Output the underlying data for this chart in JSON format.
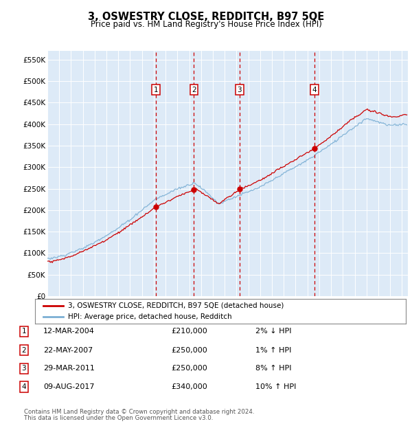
{
  "title": "3, OSWESTRY CLOSE, REDDITCH, B97 5QE",
  "subtitle": "Price paid vs. HM Land Registry's House Price Index (HPI)",
  "legend_line1": "3, OSWESTRY CLOSE, REDDITCH, B97 5QE (detached house)",
  "legend_line2": "HPI: Average price, detached house, Redditch",
  "footer1": "Contains HM Land Registry data © Crown copyright and database right 2024.",
  "footer2": "This data is licensed under the Open Government Licence v3.0.",
  "transactions": [
    {
      "num": 1,
      "date": "12-MAR-2004",
      "price": 210000,
      "pct": "2%",
      "dir": "↓",
      "year": 2004.2
    },
    {
      "num": 2,
      "date": "22-MAY-2007",
      "price": 250000,
      "pct": "1%",
      "dir": "↑",
      "year": 2007.4
    },
    {
      "num": 3,
      "date": "29-MAR-2011",
      "price": 250000,
      "pct": "8%",
      "dir": "↑",
      "year": 2011.25
    },
    {
      "num": 4,
      "date": "09-AUG-2017",
      "price": 340000,
      "pct": "10%",
      "dir": "↑",
      "year": 2017.6
    }
  ],
  "hpi_color": "#7bafd4",
  "price_color": "#cc0000",
  "dashed_color": "#cc0000",
  "background_chart": "#ddeaf7",
  "background_fig": "#ffffff",
  "ylim": [
    0,
    570000
  ],
  "xlim_start": 1995,
  "xlim_end": 2025.5,
  "yticks": [
    0,
    50000,
    100000,
    150000,
    200000,
    250000,
    300000,
    350000,
    400000,
    450000,
    500000,
    550000
  ],
  "ytick_labels": [
    "£0",
    "£50K",
    "£100K",
    "£150K",
    "£200K",
    "£250K",
    "£300K",
    "£350K",
    "£400K",
    "£450K",
    "£500K",
    "£550K"
  ],
  "xticks": [
    1995,
    1996,
    1997,
    1998,
    1999,
    2000,
    2001,
    2002,
    2003,
    2004,
    2005,
    2006,
    2007,
    2008,
    2009,
    2010,
    2011,
    2012,
    2013,
    2014,
    2015,
    2016,
    2017,
    2018,
    2019,
    2020,
    2021,
    2022,
    2023,
    2024,
    2025
  ]
}
